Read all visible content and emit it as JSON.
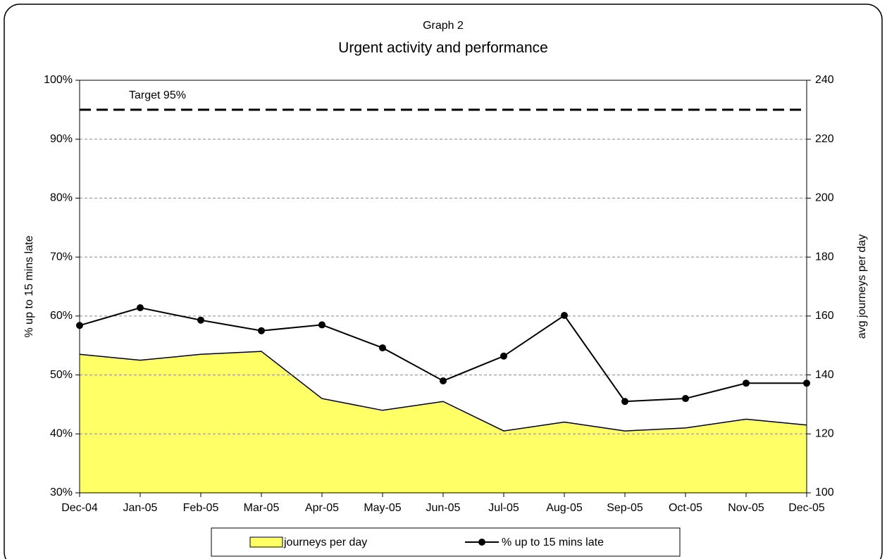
{
  "chart_data": {
    "type": "line",
    "subtitle": "Graph 2",
    "title": "Urgent activity and performance",
    "y_label": "% up to 15 mins late",
    "y2_label": "avg journeys per day",
    "categories": [
      "Dec-04",
      "Jan-05",
      "Feb-05",
      "Mar-05",
      "Apr-05",
      "May-05",
      "Jun-05",
      "Jul-05",
      "Aug-05",
      "Sep-05",
      "Oct-05",
      "Nov-05",
      "Dec-05"
    ],
    "series": [
      {
        "name": "journeys per day",
        "type": "area",
        "axis": "y2",
        "color": "#ffff66",
        "values": [
          147,
          145,
          147,
          148,
          132,
          128,
          131,
          121,
          124,
          121,
          122,
          125,
          123
        ]
      },
      {
        "name": "% up to 15 mins late",
        "type": "line",
        "axis": "y",
        "color": "#000000",
        "values": [
          58.4,
          61.4,
          59.3,
          57.5,
          58.5,
          54.6,
          49.0,
          53.2,
          60.1,
          45.5,
          46.0,
          48.6,
          48.6
        ]
      }
    ],
    "ylim": [
      30,
      100
    ],
    "yticks": [
      {
        "value": 30,
        "label": "30%"
      },
      {
        "value": 40,
        "label": "40%"
      },
      {
        "value": 50,
        "label": "50%"
      },
      {
        "value": 60,
        "label": "60%"
      },
      {
        "value": 70,
        "label": "70%"
      },
      {
        "value": 80,
        "label": "80%"
      },
      {
        "value": 90,
        "label": "90%"
      },
      {
        "value": 100,
        "label": "100%"
      }
    ],
    "y2lim": [
      100,
      240
    ],
    "y2ticks": [
      100,
      120,
      140,
      160,
      180,
      200,
      220,
      240
    ],
    "grid": true,
    "legend": "bottom",
    "annotations": [
      {
        "text": "Target 95%",
        "value": 95
      }
    ]
  }
}
